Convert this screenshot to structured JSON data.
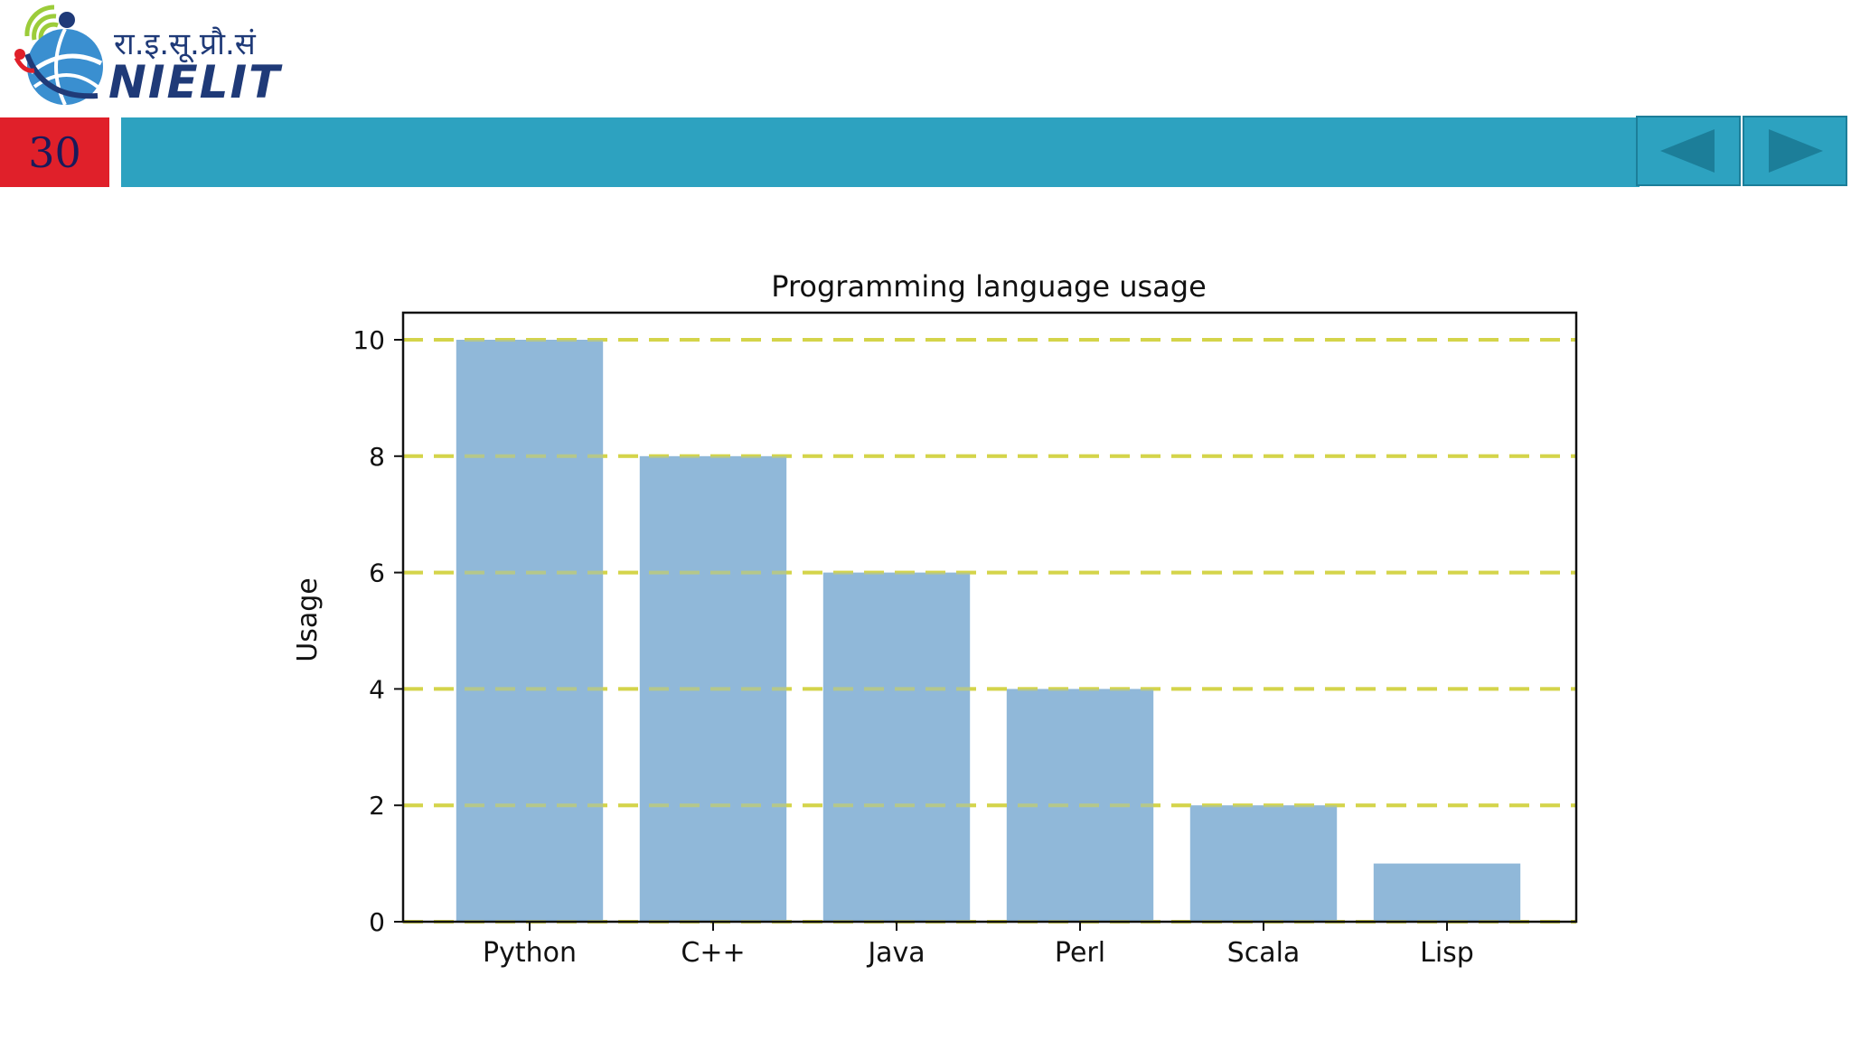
{
  "logo": {
    "hindi_text": "रा.इ.सू.प्रौ.सं",
    "english_text": "NIELIT"
  },
  "header": {
    "page_number": "30",
    "band_color": "#2da2c0",
    "page_number_color": "#e0202a"
  },
  "navigation": {
    "prev_icon": "triangle-left-icon",
    "next_icon": "triangle-right-icon"
  },
  "chart_data": {
    "type": "bar",
    "title": "Programming language usage",
    "xlabel": "",
    "ylabel": "Usage",
    "categories": [
      "Python",
      "C++",
      "Java",
      "Perl",
      "Scala",
      "Lisp"
    ],
    "values": [
      10,
      8,
      6,
      4,
      2,
      1
    ],
    "ylim": [
      0,
      10
    ],
    "yticks": [
      0,
      2,
      4,
      6,
      8,
      10
    ],
    "grid": "horizontal dashed",
    "bar_color": "#90b8d9",
    "grid_color": "#d4d44a"
  }
}
